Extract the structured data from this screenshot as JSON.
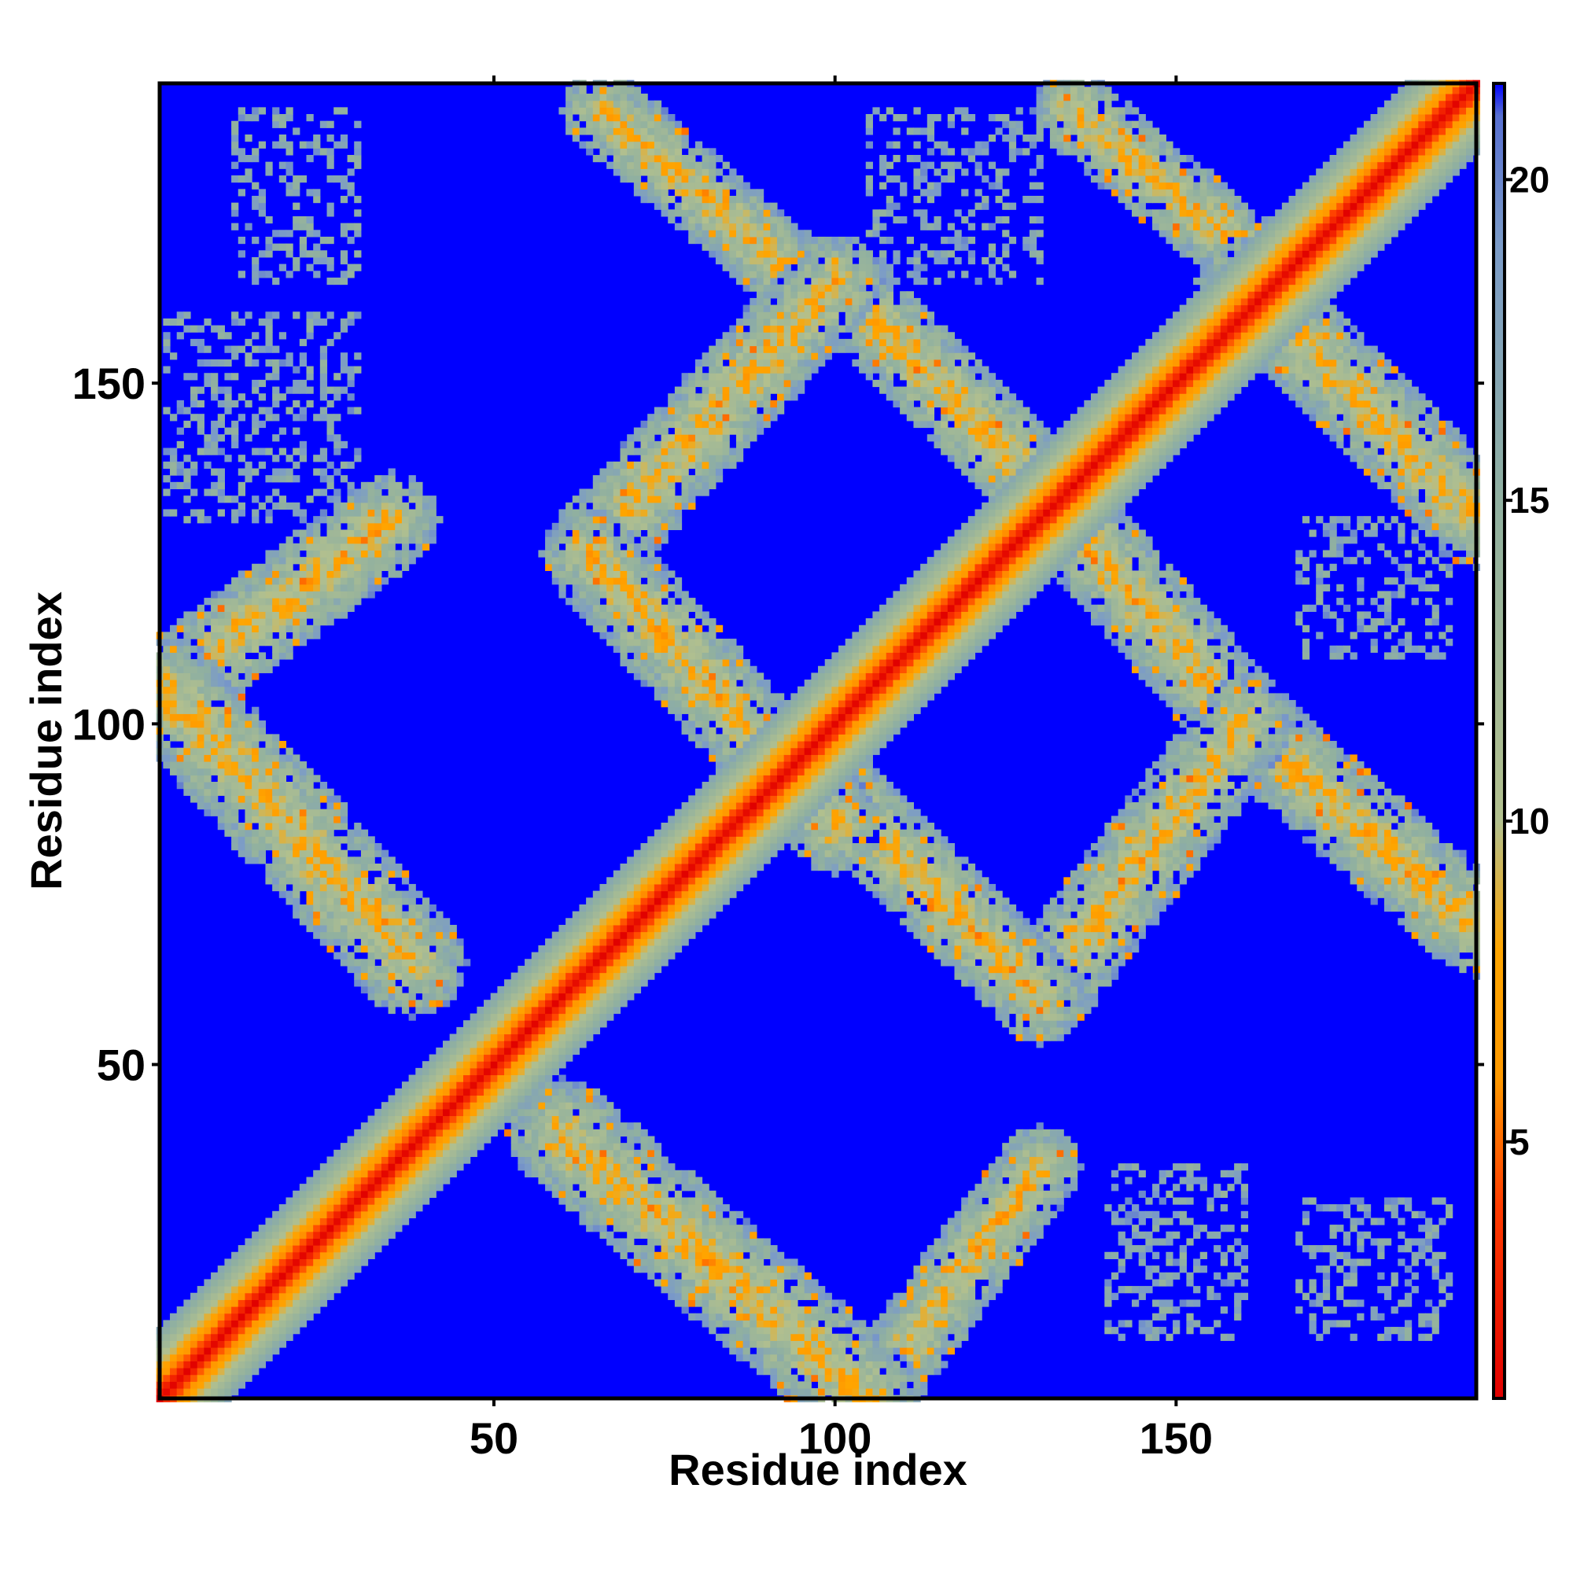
{
  "chart_data": {
    "type": "heatmap",
    "title": "",
    "xlabel": "Residue index",
    "ylabel": "Residue index",
    "xlim": [
      1,
      194
    ],
    "ylim": [
      1,
      194
    ],
    "x_ticks": [
      "50",
      "100",
      "150"
    ],
    "y_ticks": [
      "50",
      "100",
      "150"
    ],
    "colorbar": {
      "range": [
        1,
        21.5
      ],
      "ticks": [
        "5",
        "10",
        "15",
        "20"
      ],
      "stops": [
        {
          "value": 1,
          "color": "#e00000"
        },
        {
          "value": 4,
          "color": "#ff3c00"
        },
        {
          "value": 6,
          "color": "#ff9900"
        },
        {
          "value": 8,
          "color": "#ffa500"
        },
        {
          "value": 10,
          "color": "#b2c08e"
        },
        {
          "value": 15,
          "color": "#90b0a0"
        },
        {
          "value": 19,
          "color": "#7b9bc8"
        },
        {
          "value": 21,
          "color": "#5870d0"
        },
        {
          "value": 21.5,
          "color": "#0000ff"
        }
      ]
    },
    "background_color": "#0000ff",
    "contact_bands": [
      {
        "axis": "diagonal",
        "x": [
          1,
          194
        ],
        "y": [
          1,
          194
        ],
        "width": 10
      },
      {
        "axis": "anti",
        "x": [
          60,
          105
        ],
        "y": [
          40,
          1
        ],
        "width": 16
      },
      {
        "axis": "anti",
        "x": [
          105,
          130
        ],
        "y": [
          1,
          35
        ],
        "width": 12
      },
      {
        "axis": "anti",
        "x": [
          2,
          38
        ],
        "y": [
          105,
          65
        ],
        "width": 16
      },
      {
        "axis": "anti",
        "x": [
          2,
          35
        ],
        "y": [
          105,
          130
        ],
        "width": 14
      },
      {
        "axis": "anti",
        "x": [
          64,
          100
        ],
        "y": [
          125,
          85
        ],
        "width": 14
      },
      {
        "axis": "anti",
        "x": [
          64,
          100
        ],
        "y": [
          125,
          165
        ],
        "width": 14
      },
      {
        "axis": "anti",
        "x": [
          100,
          130
        ],
        "y": [
          90,
          60
        ],
        "width": 14
      },
      {
        "axis": "anti",
        "x": [
          130,
          160
        ],
        "y": [
          60,
          100
        ],
        "width": 14
      },
      {
        "axis": "anti",
        "x": [
          100,
          130
        ],
        "y": [
          165,
          135
        ],
        "width": 14
      },
      {
        "axis": "anti",
        "x": [
          130,
          160
        ],
        "y": [
          135,
          100
        ],
        "width": 14
      },
      {
        "axis": "anti",
        "x": [
          160,
          194
        ],
        "y": [
          100,
          70
        ],
        "width": 14
      },
      {
        "axis": "anti",
        "x": [
          160,
          194
        ],
        "y": [
          165,
          130
        ],
        "width": 14
      },
      {
        "axis": "anti",
        "x": [
          66,
          95
        ],
        "y": [
          190,
          165
        ],
        "width": 12
      },
      {
        "axis": "anti",
        "x": [
          135,
          165
        ],
        "y": [
          190,
          165
        ],
        "width": 12
      }
    ],
    "sparse_patches": [
      {
        "x": [
          12,
          30
        ],
        "y": [
          165,
          190
        ]
      },
      {
        "x": [
          2,
          30
        ],
        "y": [
          130,
          160
        ]
      },
      {
        "x": [
          140,
          160
        ],
        "y": [
          10,
          35
        ]
      },
      {
        "x": [
          168,
          190
        ],
        "y": [
          10,
          30
        ]
      },
      {
        "x": [
          105,
          130
        ],
        "y": [
          165,
          190
        ]
      },
      {
        "x": [
          168,
          190
        ],
        "y": [
          110,
          130
        ]
      }
    ]
  }
}
